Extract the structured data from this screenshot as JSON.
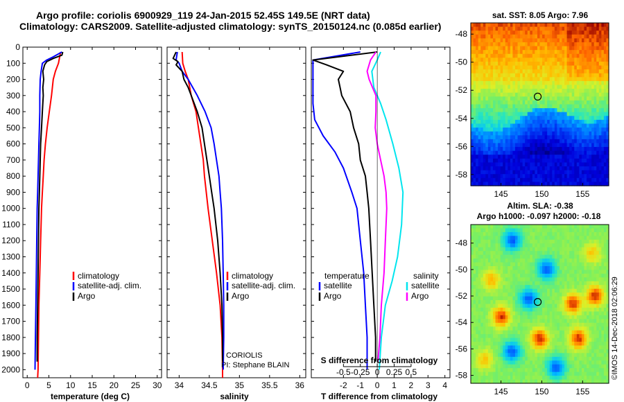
{
  "title": {
    "line1": "Argo profile: coriolis 6900929_119 24-Jan-2015 52.45S 149.5E (NRT data)",
    "line2": "Climatology: CARS2009. Satellite-adjusted climatology: synTS_20150124.nc (0.085d earlier)"
  },
  "legend": {
    "climatology": "climatology",
    "satellite_adj": "satellite-adj. clim.",
    "argo": "Argo",
    "temperature": "temperature",
    "salinity": "salinity",
    "satellite": "satellite"
  },
  "credits": {
    "institution": "CORIOLIS",
    "pi": "PI: Stephane BLAIN",
    "copyright": "©IMOS 14-Dec-2018 02:06:29"
  },
  "colors": {
    "climatology": "#ff0000",
    "satellite": "#0000ff",
    "argo": "#000000",
    "s_satellite": "#00e5ee",
    "s_argo": "#ff00ff"
  },
  "chart_data": [
    {
      "type": "line",
      "name": "temperature",
      "xlabel": "temperature (deg C)",
      "xlim": [
        -1,
        31
      ],
      "ylim": [
        2050,
        0
      ],
      "xticks": [
        "0",
        "5",
        "10",
        "15",
        "20",
        "25",
        "30"
      ],
      "yticks": [
        "0",
        "100",
        "200",
        "300",
        "400",
        "500",
        "600",
        "700",
        "800",
        "900",
        "1000",
        "1100",
        "1200",
        "1300",
        "1400",
        "1500",
        "1600",
        "1700",
        "1800",
        "1900",
        "2000"
      ],
      "series": [
        {
          "name": "climatology",
          "color": "#ff0000",
          "points": [
            [
              7.7,
              30
            ],
            [
              7.5,
              60
            ],
            [
              7.2,
              100
            ],
            [
              6.5,
              150
            ],
            [
              6.0,
              200
            ],
            [
              5.6,
              300
            ],
            [
              5.1,
              400
            ],
            [
              4.6,
              500
            ],
            [
              4.2,
              600
            ],
            [
              3.9,
              700
            ],
            [
              3.7,
              800
            ],
            [
              3.5,
              900
            ],
            [
              3.3,
              1000
            ],
            [
              3.1,
              1200
            ],
            [
              2.9,
              1400
            ],
            [
              2.7,
              1600
            ],
            [
              2.6,
              1800
            ],
            [
              2.5,
              2000
            ],
            [
              2.4,
              2050
            ]
          ]
        },
        {
          "name": "satellite-adj. clim.",
          "color": "#0000ff",
          "points": [
            [
              8.0,
              30
            ],
            [
              6.0,
              60
            ],
            [
              4.5,
              80
            ],
            [
              3.5,
              100
            ],
            [
              3.2,
              150
            ],
            [
              3.0,
              200
            ],
            [
              2.9,
              300
            ],
            [
              2.9,
              400
            ],
            [
              2.8,
              500
            ],
            [
              2.7,
              600
            ],
            [
              2.6,
              700
            ],
            [
              2.5,
              800
            ],
            [
              2.4,
              900
            ],
            [
              2.3,
              1000
            ],
            [
              2.2,
              1200
            ],
            [
              2.1,
              1400
            ],
            [
              2.0,
              1600
            ],
            [
              1.9,
              1800
            ],
            [
              1.8,
              2000
            ]
          ]
        },
        {
          "name": "Argo",
          "color": "#000000",
          "points": [
            [
              8.2,
              30
            ],
            [
              8.0,
              50
            ],
            [
              6.0,
              70
            ],
            [
              4.5,
              90
            ],
            [
              4.0,
              110
            ],
            [
              3.6,
              150
            ],
            [
              3.8,
              200
            ],
            [
              3.6,
              250
            ],
            [
              3.7,
              300
            ],
            [
              3.5,
              400
            ],
            [
              3.3,
              500
            ],
            [
              3.1,
              600
            ],
            [
              3.0,
              700
            ],
            [
              2.9,
              800
            ],
            [
              2.8,
              900
            ],
            [
              2.7,
              1000
            ],
            [
              2.6,
              1200
            ],
            [
              2.5,
              1400
            ],
            [
              2.4,
              1600
            ],
            [
              2.3,
              1800
            ],
            [
              2.3,
              1950
            ]
          ]
        }
      ]
    },
    {
      "type": "line",
      "name": "salinity",
      "xlabel": "salinity",
      "xlim": [
        33.8,
        36.1
      ],
      "ylim": [
        2050,
        0
      ],
      "xticks": [
        "34",
        "34.5",
        "35",
        "35.5",
        "36"
      ],
      "series": [
        {
          "name": "climatology",
          "color": "#ff0000",
          "points": [
            [
              34.05,
              30
            ],
            [
              34.06,
              100
            ],
            [
              34.1,
              150
            ],
            [
              34.15,
              200
            ],
            [
              34.2,
              300
            ],
            [
              34.28,
              400
            ],
            [
              34.32,
              500
            ],
            [
              34.36,
              600
            ],
            [
              34.4,
              700
            ],
            [
              34.42,
              800
            ],
            [
              34.45,
              900
            ],
            [
              34.48,
              1000
            ],
            [
              34.55,
              1200
            ],
            [
              34.62,
              1400
            ],
            [
              34.68,
              1600
            ],
            [
              34.71,
              1800
            ],
            [
              34.72,
              2000
            ],
            [
              34.72,
              2050
            ]
          ]
        },
        {
          "name": "satellite-adj. clim.",
          "color": "#0000ff",
          "points": [
            [
              33.97,
              30
            ],
            [
              33.95,
              80
            ],
            [
              34.0,
              100
            ],
            [
              34.05,
              150
            ],
            [
              34.15,
              200
            ],
            [
              34.3,
              300
            ],
            [
              34.43,
              400
            ],
            [
              34.53,
              500
            ],
            [
              34.58,
              600
            ],
            [
              34.62,
              700
            ],
            [
              34.66,
              800
            ],
            [
              34.68,
              900
            ],
            [
              34.7,
              1000
            ],
            [
              34.72,
              1200
            ],
            [
              34.73,
              1400
            ],
            [
              34.74,
              1600
            ],
            [
              34.74,
              1800
            ],
            [
              34.73,
              2000
            ]
          ]
        },
        {
          "name": "Argo",
          "color": "#000000",
          "points": [
            [
              33.95,
              30
            ],
            [
              33.9,
              70
            ],
            [
              33.98,
              90
            ],
            [
              33.95,
              110
            ],
            [
              34.05,
              150
            ],
            [
              34.08,
              200
            ],
            [
              34.15,
              250
            ],
            [
              34.2,
              300
            ],
            [
              34.3,
              400
            ],
            [
              34.38,
              500
            ],
            [
              34.42,
              600
            ],
            [
              34.46,
              700
            ],
            [
              34.5,
              800
            ],
            [
              34.54,
              900
            ],
            [
              34.58,
              1000
            ],
            [
              34.64,
              1200
            ],
            [
              34.68,
              1400
            ],
            [
              34.71,
              1600
            ],
            [
              34.72,
              1800
            ],
            [
              34.72,
              1950
            ]
          ]
        }
      ]
    },
    {
      "type": "line",
      "name": "difference",
      "xlabel": "T difference from climatology",
      "xlim": [
        -3.9,
        4.3
      ],
      "xticks": [
        "-2",
        "-1",
        "0",
        "1",
        "2",
        "3",
        "4"
      ],
      "s_axis_label": "S difference from climatology",
      "s_xlim": [
        -0.975,
        1.075
      ],
      "s_ticks": [
        "-0.5",
        "-0.25",
        "0",
        "0.25",
        "0.5"
      ],
      "series": [
        {
          "name": "T satellite",
          "color": "#0000ff",
          "points": [
            [
              -1.0,
              30
            ],
            [
              -3.8,
              80
            ],
            [
              -3.8,
              350
            ],
            [
              -3.7,
              450
            ],
            [
              -3.2,
              550
            ],
            [
              -2.5,
              650
            ],
            [
              -2.0,
              750
            ],
            [
              -1.5,
              900
            ],
            [
              -1.2,
              1000
            ],
            [
              -1.0,
              1200
            ],
            [
              -0.8,
              1400
            ],
            [
              -0.7,
              1600
            ],
            [
              -0.6,
              1800
            ],
            [
              -0.6,
              2000
            ]
          ]
        },
        {
          "name": "T Argo",
          "color": "#000000",
          "points": [
            [
              0.0,
              30
            ],
            [
              -3.8,
              80
            ],
            [
              -3.0,
              110
            ],
            [
              -2.0,
              150
            ],
            [
              -2.3,
              200
            ],
            [
              -2.2,
              250
            ],
            [
              -2.1,
              300
            ],
            [
              -1.6,
              400
            ],
            [
              -1.4,
              500
            ],
            [
              -1.1,
              600
            ],
            [
              -1.0,
              700
            ],
            [
              -0.7,
              800
            ],
            [
              -0.6,
              900
            ],
            [
              -0.5,
              1000
            ],
            [
              -0.4,
              1200
            ],
            [
              -0.3,
              1400
            ],
            [
              -0.2,
              1600
            ],
            [
              -0.1,
              1800
            ],
            [
              -0.1,
              1950
            ]
          ]
        },
        {
          "name": "S satellite",
          "color": "#00e5ee",
          "points": [
            [
              0.05,
              30
            ],
            [
              0.0,
              80
            ],
            [
              -0.08,
              150
            ],
            [
              -0.05,
              250
            ],
            [
              0.05,
              350
            ],
            [
              0.13,
              450
            ],
            [
              0.23,
              600
            ],
            [
              0.32,
              750
            ],
            [
              0.38,
              900
            ],
            [
              0.36,
              1100
            ],
            [
              0.3,
              1300
            ],
            [
              0.22,
              1450
            ],
            [
              0.12,
              1600
            ],
            [
              0.06,
              1800
            ],
            [
              0.03,
              2000
            ]
          ]
        },
        {
          "name": "S Argo",
          "color": "#ff00ff",
          "points": [
            [
              -0.02,
              30
            ],
            [
              -0.1,
              80
            ],
            [
              -0.15,
              150
            ],
            [
              -0.12,
              200
            ],
            [
              -0.02,
              300
            ],
            [
              -0.02,
              400
            ],
            [
              -0.03,
              500
            ],
            [
              0.0,
              600
            ],
            [
              0.05,
              700
            ],
            [
              0.1,
              800
            ],
            [
              0.13,
              900
            ],
            [
              0.14,
              1000
            ],
            [
              0.12,
              1200
            ],
            [
              0.1,
              1400
            ],
            [
              0.06,
              1600
            ],
            [
              0.04,
              1800
            ],
            [
              0.01,
              1950
            ]
          ]
        }
      ]
    },
    {
      "type": "heatmap",
      "name": "satellite SST map",
      "title": "sat. SST: 8.05  Argo: 7.96",
      "xlim": [
        141.3,
        158.2
      ],
      "ylim": [
        -58.8,
        -47.2
      ],
      "xticks": [
        "145",
        "150",
        "155"
      ],
      "yticks": [
        "-48",
        "-50",
        "-52",
        "-54",
        "-56",
        "-58"
      ],
      "argo_position": [
        149.5,
        -52.45
      ]
    },
    {
      "type": "heatmap",
      "name": "altimetry SLA map",
      "title_line1": "Altim. SLA: -0.38",
      "title_line2": "Argo h1000: -0.097  h2000: -0.18",
      "xlim": [
        141.3,
        158.2
      ],
      "ylim": [
        -58.6,
        -46.6
      ],
      "xticks": [
        "145",
        "150",
        "155"
      ],
      "yticks": [
        "-48",
        "-50",
        "-52",
        "-54",
        "-56",
        "-58"
      ],
      "argo_position": [
        149.5,
        -52.45
      ]
    }
  ]
}
